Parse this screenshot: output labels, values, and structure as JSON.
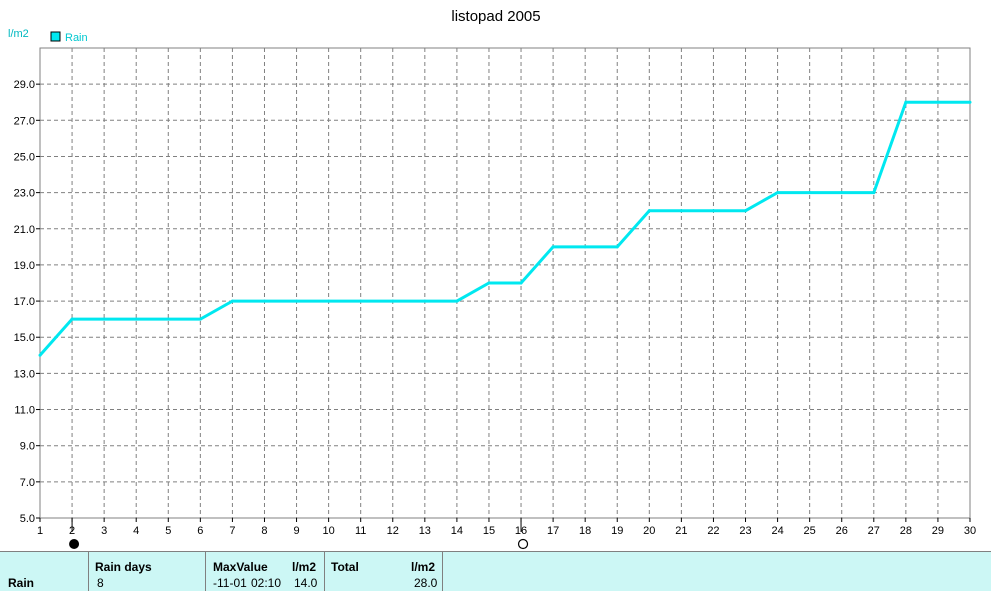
{
  "chart_data": {
    "type": "line",
    "title": "listopad 2005",
    "ylabel": "l/m2",
    "xlabel": "",
    "legend": [
      {
        "name": "Rain",
        "color": "#00e8f0"
      }
    ],
    "legend_position": "top-left",
    "grid": true,
    "x": [
      1,
      2,
      3,
      4,
      5,
      6,
      7,
      8,
      9,
      10,
      11,
      12,
      13,
      14,
      15,
      16,
      17,
      18,
      19,
      20,
      21,
      22,
      23,
      24,
      25,
      26,
      27,
      28,
      29,
      30
    ],
    "series": [
      {
        "name": "Rain",
        "color": "#00e8f0",
        "values": [
          14.0,
          16.0,
          16.0,
          16.0,
          16.0,
          16.0,
          17.0,
          17.0,
          17.0,
          17.0,
          17.0,
          17.0,
          17.0,
          17.0,
          18.0,
          18.0,
          20.0,
          20.0,
          20.0,
          22.0,
          22.0,
          22.0,
          22.0,
          23.0,
          23.0,
          23.0,
          23.0,
          28.0,
          28.0,
          28.0
        ]
      }
    ],
    "xlim": [
      1,
      30
    ],
    "ylim": [
      5.0,
      31.0
    ],
    "yticks": [
      "5.0",
      "7.0",
      "9.0",
      "11.0",
      "13.0",
      "15.0",
      "17.0",
      "19.0",
      "21.0",
      "23.0",
      "25.0",
      "27.0",
      "29.0"
    ],
    "xticks": [
      "1",
      "2",
      "3",
      "4",
      "5",
      "6",
      "7",
      "8",
      "9",
      "10",
      "11",
      "12",
      "13",
      "14",
      "15",
      "16",
      "17",
      "18",
      "19",
      "20",
      "21",
      "22",
      "23",
      "24",
      "25",
      "26",
      "27",
      "28",
      "29",
      "30"
    ],
    "markers": [
      {
        "x": 2,
        "symbol": "filled-circle"
      },
      {
        "x": 16,
        "symbol": "open-circle"
      }
    ]
  },
  "summary": {
    "row_label": "Rain",
    "rain_days_label": "Rain days",
    "rain_days_value": "8",
    "max_label": "MaxValue",
    "max_unit": "l/m2",
    "max_date": "-11-01",
    "max_time": "02:10",
    "max_value": "14.0",
    "total_label": "Total",
    "total_unit": "l/m2",
    "total_value": "28.0"
  }
}
